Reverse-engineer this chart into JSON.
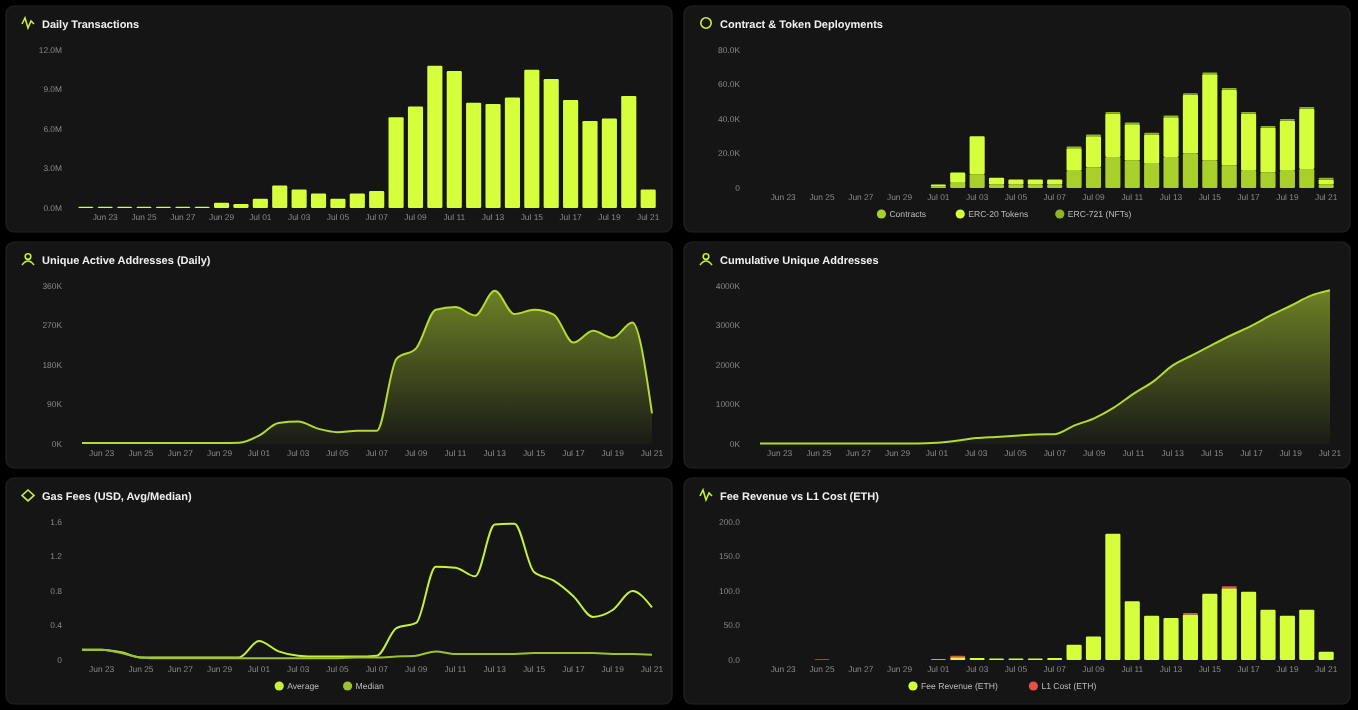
{
  "chart_data": [
    {
      "type": "bar",
      "title": "Daily Transactions",
      "categories": [
        null,
        "Jun 23",
        null,
        "Jun 25",
        null,
        "Jun 27",
        null,
        "Jun 29",
        null,
        "Jul 01",
        null,
        "Jul 03",
        null,
        "Jul 05",
        null,
        "Jul 07",
        null,
        "Jul 09",
        null,
        "Jul 11",
        null,
        "Jul 13",
        null,
        "Jul 15",
        null,
        "Jul 17",
        null,
        "Jul 19",
        null,
        "Jul 21"
      ],
      "values": [
        0.1,
        0.1,
        0.1,
        0.1,
        0.1,
        0.1,
        0.1,
        0.4,
        0.3,
        0.7,
        1.7,
        1.4,
        1.1,
        0.7,
        1.1,
        1.3,
        6.9,
        7.7,
        10.8,
        10.4,
        8.0,
        7.9,
        8.4,
        10.5,
        9.8,
        8.2,
        6.6,
        6.8,
        8.5,
        1.4
      ],
      "color": "#d4ff3a",
      "ylim": [
        0,
        12
      ],
      "yticks": [
        {
          "value": 0,
          "label": "0.0M"
        },
        {
          "value": 3,
          "label": "3.0M"
        },
        {
          "value": 6,
          "label": "6.0M"
        },
        {
          "value": 9,
          "label": "9.0M"
        },
        {
          "value": 12,
          "label": "12.0M"
        }
      ]
    },
    {
      "type": "bar",
      "title": "Contract & Token Deployments",
      "stacked": true,
      "legend": "bottom",
      "categories": [
        null,
        "Jun 23",
        null,
        "Jun 25",
        null,
        "Jun 27",
        null,
        "Jun 29",
        null,
        "Jul 01",
        null,
        "Jul 03",
        null,
        "Jul 05",
        null,
        "Jul 07",
        null,
        "Jul 09",
        null,
        "Jul 11",
        null,
        "Jul 13",
        null,
        "Jul 15",
        null,
        "Jul 17",
        null,
        "Jul 19",
        null,
        "Jul 21"
      ],
      "series": [
        {
          "name": "Contracts",
          "color": "#a9cf2a",
          "values": [
            0,
            0,
            0,
            0,
            0,
            0,
            0,
            0,
            0,
            1,
            3,
            8,
            2,
            2,
            2,
            2,
            10,
            12,
            18,
            16,
            14,
            18,
            20,
            16,
            13,
            10,
            9,
            10,
            11,
            2
          ]
        },
        {
          "name": "ERC-20 Tokens",
          "color": "#d4ff3a",
          "values": [
            0,
            0,
            0,
            0,
            0,
            0,
            0,
            0,
            0,
            1,
            6,
            22,
            4,
            3,
            3,
            3,
            13,
            18,
            25,
            21,
            17,
            23,
            34,
            50,
            44,
            33,
            26,
            29,
            35,
            3
          ]
        },
        {
          "name": "ERC-721 (NFTs)",
          "color": "#8fb526",
          "values": [
            0,
            0,
            0,
            0,
            0,
            0,
            0,
            0,
            0,
            0,
            0,
            0,
            0,
            0,
            0,
            0,
            1,
            1,
            1,
            1,
            1,
            1,
            1,
            1,
            1,
            1,
            1,
            1,
            1,
            1
          ]
        }
      ],
      "ylim": [
        0,
        80
      ],
      "yticks": [
        0,
        {
          "value": 20,
          "label": "20.0K"
        },
        {
          "value": 40,
          "label": "40.0K"
        },
        {
          "value": 60,
          "label": "60.0K"
        },
        {
          "value": 80,
          "label": "80.0K"
        }
      ]
    },
    {
      "type": "area",
      "title": "Unique Active Addresses (Daily)",
      "categories": [
        null,
        "Jun 23",
        null,
        "Jun 25",
        null,
        "Jun 27",
        null,
        "Jun 29",
        null,
        "Jul 01",
        null,
        "Jul 03",
        null,
        "Jul 05",
        null,
        "Jul 07",
        null,
        "Jul 09",
        null,
        "Jul 11",
        null,
        "Jul 13",
        null,
        "Jul 15",
        null,
        "Jul 17",
        null,
        "Jul 19",
        null,
        "Jul 21"
      ],
      "values": [
        2,
        2,
        2,
        2,
        2,
        2,
        2,
        2,
        3,
        19,
        48,
        51,
        35,
        27,
        30,
        30,
        194,
        218,
        306,
        312,
        293,
        349,
        296,
        306,
        295,
        231,
        258,
        242,
        277,
        70
      ],
      "color": "#b5d934",
      "ylim": [
        0,
        360
      ],
      "yticks": [
        {
          "value": 0,
          "label": "0K"
        },
        {
          "value": 90,
          "label": "90K"
        },
        {
          "value": 180,
          "label": "180K"
        },
        {
          "value": 270,
          "label": "270K"
        },
        {
          "value": 360,
          "label": "360K"
        }
      ]
    },
    {
      "type": "area",
      "title": "Cumulative Unique Addresses",
      "categories": [
        null,
        "Jun 23",
        null,
        "Jun 25",
        null,
        "Jun 27",
        null,
        "Jun 29",
        null,
        "Jul 01",
        null,
        "Jul 03",
        null,
        "Jul 05",
        null,
        "Jul 07",
        null,
        "Jul 09",
        null,
        "Jul 11",
        null,
        "Jul 13",
        null,
        "Jul 15",
        null,
        "Jul 17",
        null,
        "Jul 19",
        null,
        "Jul 21"
      ],
      "values": [
        10,
        10,
        10,
        10,
        10,
        10,
        10,
        10,
        10,
        30,
        80,
        150,
        180,
        210,
        240,
        250,
        470,
        650,
        920,
        1270,
        1580,
        1990,
        2250,
        2510,
        2760,
        2990,
        3260,
        3500,
        3750,
        3890
      ],
      "color": "#b5d934",
      "ylim": [
        0,
        4000
      ],
      "yticks": [
        {
          "value": 0,
          "label": "0K"
        },
        {
          "value": 1000,
          "label": "1000K"
        },
        {
          "value": 2000,
          "label": "2000K"
        },
        {
          "value": 3000,
          "label": "3000K"
        },
        {
          "value": 4000,
          "label": "4000K"
        }
      ]
    },
    {
      "type": "line",
      "title": "Gas Fees (USD, Avg/Median)",
      "legend": "bottom",
      "categories": [
        null,
        "Jun 23",
        null,
        "Jun 25",
        null,
        "Jun 27",
        null,
        "Jun 29",
        null,
        "Jul 01",
        null,
        "Jul 03",
        null,
        "Jul 05",
        null,
        "Jul 07",
        null,
        "Jul 09",
        null,
        "Jul 11",
        null,
        "Jul 13",
        null,
        "Jul 15",
        null,
        "Jul 17",
        null,
        "Jul 19",
        null,
        "Jul 21"
      ],
      "series": [
        {
          "name": "Average",
          "color": "#c8ef3a",
          "values": [
            0.12,
            0.12,
            0.09,
            0.03,
            0.03,
            0.03,
            0.03,
            0.03,
            0.03,
            0.22,
            0.1,
            0.05,
            0.04,
            0.04,
            0.04,
            0.05,
            0.37,
            0.43,
            1.08,
            1.07,
            0.97,
            1.57,
            1.58,
            1.02,
            0.92,
            0.74,
            0.5,
            0.58,
            0.8,
            0.61
          ]
        },
        {
          "name": "Median",
          "color": "#9dc22e",
          "values": [
            0.12,
            0.12,
            0.08,
            0.03,
            0.02,
            0.02,
            0.02,
            0.02,
            0.02,
            0.02,
            0.02,
            0.02,
            0.02,
            0.02,
            0.03,
            0.03,
            0.04,
            0.05,
            0.1,
            0.07,
            0.07,
            0.07,
            0.07,
            0.08,
            0.08,
            0.08,
            0.08,
            0.07,
            0.07,
            0.06
          ]
        }
      ],
      "ylim": [
        0,
        1.6
      ],
      "yticks": [
        0,
        0.4,
        0.8,
        1.2,
        1.6
      ]
    },
    {
      "type": "bar",
      "title": "Fee Revenue vs L1 Cost (ETH)",
      "stacked": true,
      "legend": "bottom",
      "categories": [
        null,
        "Jun 23",
        null,
        "Jun 25",
        null,
        "Jun 27",
        null,
        "Jun 29",
        null,
        "Jul 01",
        null,
        "Jul 03",
        null,
        "Jul 05",
        null,
        "Jul 07",
        null,
        "Jul 09",
        null,
        "Jul 11",
        null,
        "Jul 13",
        null,
        "Jul 15",
        null,
        "Jul 17",
        null,
        "Jul 19",
        null,
        "Jul 21"
      ],
      "series": [
        {
          "name": "Fee Revenue (ETH)",
          "color": "#d4ff3a",
          "values": [
            0,
            0,
            0,
            0,
            0,
            0,
            0,
            0,
            0,
            1,
            4,
            3,
            2,
            2,
            2,
            3,
            22,
            34,
            183,
            85,
            64,
            61,
            66,
            96,
            104,
            99,
            73,
            64,
            73,
            12
          ]
        },
        {
          "name": "L1 Cost (ETH)",
          "color": "#e0524a",
          "values": [
            0,
            0,
            0,
            1,
            0,
            0,
            0,
            0,
            0,
            0,
            2,
            0,
            0,
            0,
            0,
            0,
            0,
            0,
            0,
            0,
            0,
            0,
            2,
            0,
            3,
            0,
            0,
            0,
            0,
            0
          ]
        }
      ],
      "ylim": [
        0,
        200
      ],
      "yticks": [
        {
          "value": 0,
          "label": "0.0"
        },
        {
          "value": 50,
          "label": "50.0"
        },
        {
          "value": 100,
          "label": "100.0"
        },
        {
          "value": 150,
          "label": "150.0"
        },
        {
          "value": 200,
          "label": "200.0"
        }
      ]
    }
  ]
}
